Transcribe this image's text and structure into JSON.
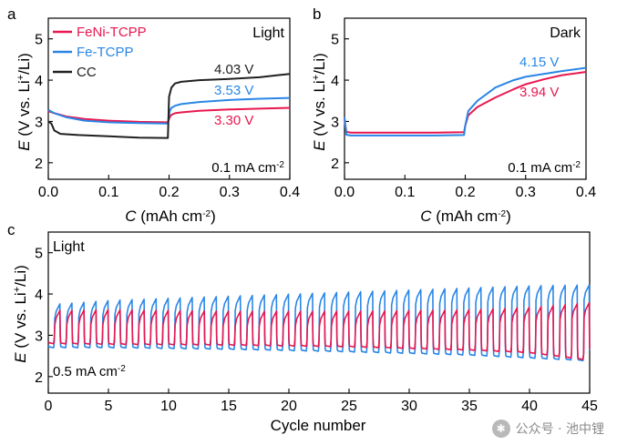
{
  "colors": {
    "feni": "#e8174f",
    "fe": "#2a86e6",
    "cc": "#202020"
  },
  "chart_data": [
    {
      "panel": "a",
      "type": "line",
      "xlabel": "C (mAh cm⁻²)",
      "ylabel": "E (V vs. Li⁺/Li)",
      "xlim": [
        0,
        0.4
      ],
      "ylim": [
        1.6,
        5.5
      ],
      "xticks": [
        0.0,
        0.1,
        0.2,
        0.3,
        0.4
      ],
      "xtick_labels": [
        "0.0",
        "0.1",
        "0.2",
        "0.3",
        "0.4"
      ],
      "yticks": [
        2,
        3,
        4,
        5
      ],
      "ytick_labels": [
        "2",
        "3",
        "4",
        "5"
      ],
      "condition": "Light",
      "current_label": "0.1 mA cm⁻²",
      "legend": [
        "FeNi-TCPP",
        "Fe-TCPP",
        "CC"
      ],
      "series": [
        {
          "name": "FeNi-TCPP",
          "color": "#e8174f",
          "label": "3.30 V",
          "x": [
            0,
            0.01,
            0.03,
            0.06,
            0.1,
            0.15,
            0.196,
            0.198,
            0.201,
            0.204,
            0.21,
            0.22,
            0.25,
            0.3,
            0.35,
            0.4
          ],
          "y": [
            3.25,
            3.2,
            3.12,
            3.06,
            3.02,
            2.99,
            2.98,
            2.98,
            3.1,
            3.16,
            3.2,
            3.22,
            3.26,
            3.29,
            3.31,
            3.33
          ]
        },
        {
          "name": "Fe-TCPP",
          "color": "#2a86e6",
          "label": "3.53 V",
          "x": [
            0,
            0.01,
            0.03,
            0.06,
            0.1,
            0.15,
            0.196,
            0.198,
            0.201,
            0.204,
            0.21,
            0.22,
            0.25,
            0.3,
            0.35,
            0.4
          ],
          "y": [
            3.28,
            3.2,
            3.1,
            3.02,
            2.98,
            2.96,
            2.95,
            2.95,
            3.25,
            3.33,
            3.38,
            3.42,
            3.47,
            3.52,
            3.55,
            3.57
          ]
        },
        {
          "name": "CC",
          "color": "#202020",
          "label": "4.03 V",
          "x": [
            0,
            0.005,
            0.01,
            0.02,
            0.05,
            0.1,
            0.15,
            0.196,
            0.198,
            0.2,
            0.204,
            0.21,
            0.22,
            0.25,
            0.3,
            0.35,
            0.38,
            0.4
          ],
          "y": [
            3.0,
            2.95,
            2.78,
            2.7,
            2.67,
            2.64,
            2.61,
            2.6,
            2.6,
            3.6,
            3.82,
            3.92,
            3.96,
            4.0,
            4.03,
            4.07,
            4.12,
            4.15
          ]
        }
      ]
    },
    {
      "panel": "b",
      "type": "line",
      "xlabel": "C (mAh cm⁻²)",
      "ylabel": "E (V vs. Li⁺/Li)",
      "xlim": [
        0,
        0.4
      ],
      "ylim": [
        1.6,
        5.5
      ],
      "xticks": [
        0.0,
        0.1,
        0.2,
        0.3,
        0.4
      ],
      "xtick_labels": [
        "0.0",
        "0.1",
        "0.2",
        "0.3",
        "0.4"
      ],
      "yticks": [
        2,
        3,
        4,
        5
      ],
      "ytick_labels": [
        "2",
        "3",
        "4",
        "5"
      ],
      "condition": "Dark",
      "current_label": "0.1 mA cm⁻²",
      "series": [
        {
          "name": "FeNi-TCPP",
          "color": "#e8174f",
          "label": "3.94 V",
          "x": [
            0,
            0.003,
            0.01,
            0.05,
            0.1,
            0.15,
            0.198,
            0.2,
            0.205,
            0.22,
            0.25,
            0.28,
            0.3,
            0.33,
            0.36,
            0.4
          ],
          "y": [
            3.05,
            2.75,
            2.73,
            2.73,
            2.73,
            2.73,
            2.74,
            2.9,
            3.15,
            3.35,
            3.58,
            3.78,
            3.9,
            4.02,
            4.12,
            4.2
          ]
        },
        {
          "name": "Fe-TCPP",
          "color": "#2a86e6",
          "label": "4.15 V",
          "x": [
            0,
            0.003,
            0.01,
            0.05,
            0.1,
            0.15,
            0.198,
            0.2,
            0.205,
            0.22,
            0.25,
            0.28,
            0.3,
            0.33,
            0.36,
            0.4
          ],
          "y": [
            3.1,
            2.68,
            2.66,
            2.66,
            2.66,
            2.66,
            2.67,
            2.9,
            3.25,
            3.5,
            3.82,
            4.0,
            4.08,
            4.15,
            4.22,
            4.3
          ]
        }
      ]
    },
    {
      "panel": "c",
      "type": "line",
      "xlabel": "Cycle number",
      "ylabel": "E (V vs. Li⁺/Li)",
      "xlim": [
        0,
        45
      ],
      "ylim": [
        1.6,
        5.5
      ],
      "xticks": [
        0,
        5,
        10,
        15,
        20,
        25,
        30,
        35,
        40,
        45
      ],
      "xtick_labels": [
        "0",
        "5",
        "10",
        "15",
        "20",
        "25",
        "30",
        "35",
        "40",
        "45"
      ],
      "yticks": [
        2,
        3,
        4,
        5
      ],
      "ytick_labels": [
        "2",
        "3",
        "4",
        "5"
      ],
      "condition": "Light",
      "current_label": "0.5 mA cm⁻²",
      "cycles": 45,
      "series": [
        {
          "name": "Fe-TCPP",
          "color": "#2a86e6",
          "cycle": [
            0,
            5,
            10,
            15,
            20,
            25,
            30,
            35,
            40,
            45
          ],
          "charge_end": [
            3.75,
            3.85,
            3.9,
            3.95,
            4.0,
            4.05,
            4.1,
            4.15,
            4.2,
            4.22
          ],
          "discharge_end": [
            2.7,
            2.7,
            2.68,
            2.66,
            2.63,
            2.6,
            2.56,
            2.52,
            2.45,
            2.38
          ]
        },
        {
          "name": "FeNi-TCPP",
          "color": "#e8174f",
          "cycle": [
            0,
            5,
            10,
            15,
            20,
            25,
            30,
            35,
            40,
            45
          ],
          "charge_end": [
            3.6,
            3.62,
            3.6,
            3.58,
            3.58,
            3.58,
            3.6,
            3.62,
            3.68,
            3.8
          ],
          "discharge_end": [
            2.8,
            2.78,
            2.77,
            2.76,
            2.74,
            2.72,
            2.68,
            2.64,
            2.58,
            2.4
          ]
        }
      ]
    }
  ]
}
